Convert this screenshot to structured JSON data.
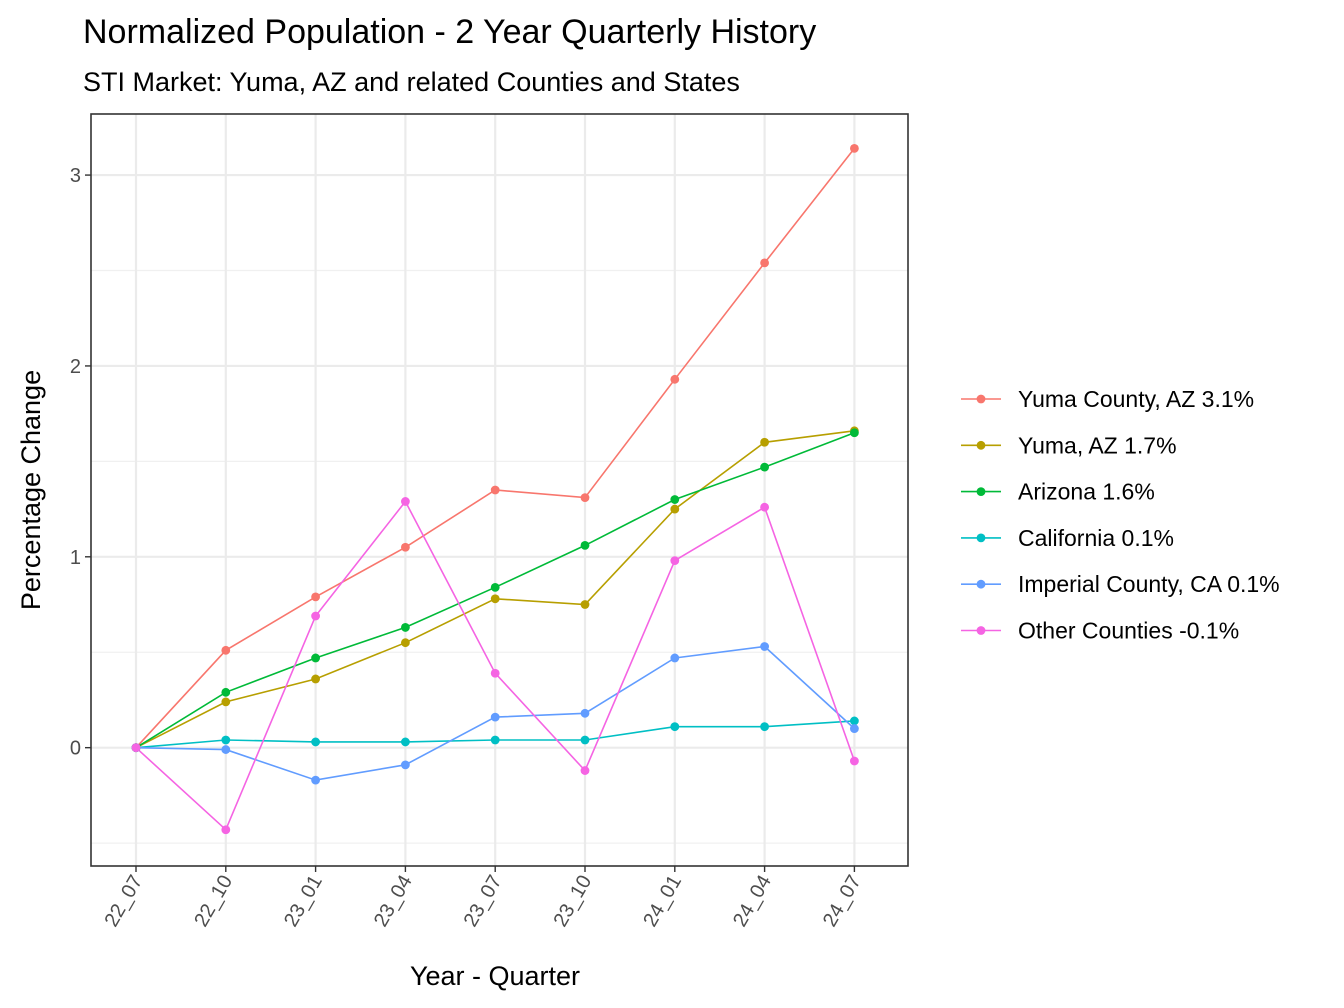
{
  "chart_data": {
    "type": "line",
    "title": "Normalized Population - 2 Year Quarterly History",
    "subtitle": "STI Market: Yuma, AZ and related Counties and States",
    "xlabel": "Year - Quarter",
    "ylabel": "Percentage Change",
    "categories": [
      "22_07",
      "22_10",
      "23_01",
      "23_04",
      "23_07",
      "23_10",
      "24_01",
      "24_04",
      "24_07"
    ],
    "ylim": [
      -0.62,
      3.32
    ],
    "yticks": [
      0,
      1,
      2,
      3
    ],
    "ytick_labels": [
      "0",
      "1",
      "2",
      "3"
    ],
    "grid": true,
    "legend_position": "right",
    "series": [
      {
        "name": "Yuma County, AZ 3.1%",
        "color": "#F8766D",
        "values": [
          0,
          0.51,
          0.79,
          1.05,
          1.35,
          1.31,
          1.93,
          2.54,
          3.14
        ]
      },
      {
        "name": "Yuma, AZ 1.7%",
        "color": "#B79F00",
        "values": [
          0,
          0.24,
          0.36,
          0.55,
          0.78,
          0.75,
          1.25,
          1.6,
          1.66
        ]
      },
      {
        "name": "Arizona 1.6%",
        "color": "#00BA38",
        "values": [
          0,
          0.29,
          0.47,
          0.63,
          0.84,
          1.06,
          1.3,
          1.47,
          1.65
        ]
      },
      {
        "name": "California 0.1%",
        "color": "#00BFC4",
        "values": [
          0,
          0.04,
          0.03,
          0.03,
          0.04,
          0.04,
          0.11,
          0.11,
          0.14
        ]
      },
      {
        "name": "Imperial County, CA 0.1%",
        "color": "#619CFF",
        "values": [
          0,
          -0.01,
          -0.17,
          -0.09,
          0.16,
          0.18,
          0.47,
          0.53,
          0.1
        ]
      },
      {
        "name": "Other Counties -0.1%",
        "color": "#F564E3",
        "values": [
          0,
          -0.43,
          0.69,
          1.29,
          0.39,
          -0.12,
          0.98,
          1.26,
          -0.07
        ]
      }
    ]
  }
}
